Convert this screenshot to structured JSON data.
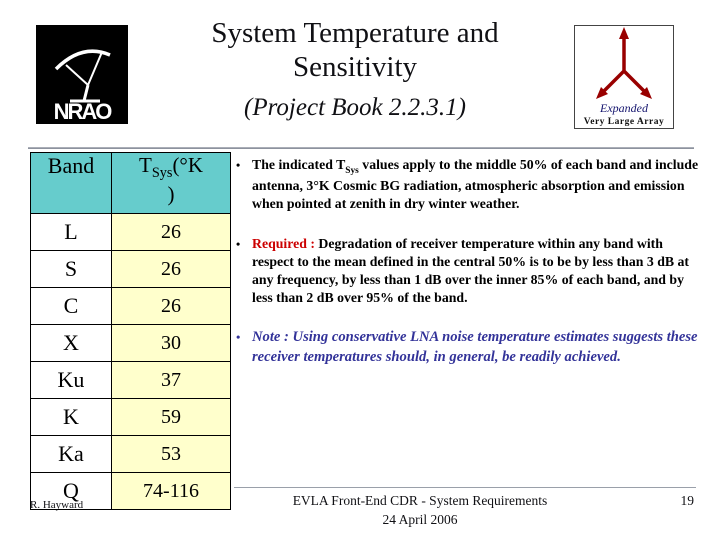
{
  "slide": {
    "title_line1": "System Temperature and",
    "title_line2": "Sensitivity",
    "subtitle": "(Project Book 2.2.3.1)",
    "bullet_char": "•"
  },
  "logos": {
    "nrao_label": "NRAO",
    "evla_expanded": "Expanded",
    "evla_name": "Very Large Array"
  },
  "table": {
    "header_band": "Band",
    "header_tsys_t": "T",
    "header_tsys_sub": "Sys",
    "header_tsys_open": "(°K",
    "header_tsys_close": ")",
    "rows": [
      {
        "band": "L",
        "tsys": "26"
      },
      {
        "band": "S",
        "tsys": "26"
      },
      {
        "band": "C",
        "tsys": "26"
      },
      {
        "band": "X",
        "tsys": "30"
      },
      {
        "band": "Ku",
        "tsys": "37"
      },
      {
        "band": "K",
        "tsys": "59"
      },
      {
        "band": "Ka",
        "tsys": "53"
      },
      {
        "band": "Q",
        "tsys": "74-116"
      }
    ]
  },
  "bullets": {
    "b1_pre": "The indicated T",
    "b1_sub": "Sys",
    "b1_post": " values apply to the middle 50% of each band and include antenna, 3°K Cosmic BG radiation, atmospheric absorption and emission when pointed at zenith in dry winter weather.",
    "b2_label": "Required :",
    "b2_text": " Degradation of receiver temperature within any band with respect to the mean defined in the central 50% is to be by less than 3 dB at any frequency, by less than 1 dB over the inner 85% of each band, and by less than 2 dB over 95% of the band.",
    "b3_label": "Note :",
    "b3_text": " Using conservative LNA noise temperature estimates suggests these receiver temperatures should, in general, be readily achieved."
  },
  "footer": {
    "author": "R. Hayward",
    "line1": "EVLA Front-End CDR - System Requirements",
    "line2": "24 April 2006",
    "page": "19"
  },
  "colors": {
    "table_header_fill": "#66CCCC",
    "table_value_fill": "#FFFFCC",
    "note_blue": "#333399",
    "required_red": "#CC0000",
    "logo_red": "#990000"
  }
}
